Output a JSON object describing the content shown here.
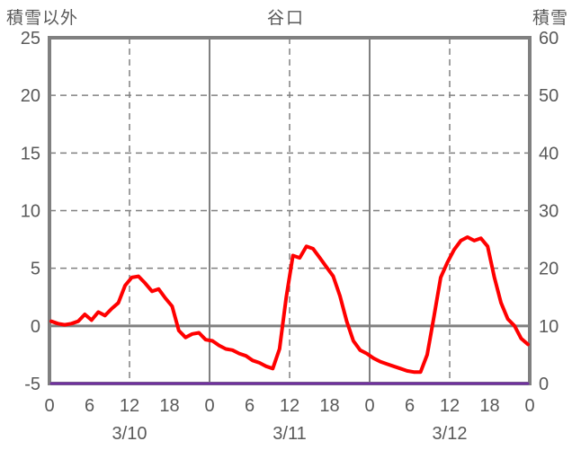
{
  "chart": {
    "title": "谷口",
    "left_axis_title": "積雪以外",
    "right_axis_title": "積雪"
  },
  "chart_data": {
    "type": "line",
    "title": "谷口",
    "x_axis": {
      "unit": "hour",
      "points_per_day": 24,
      "total_points": 72,
      "hour_tick_labels": [
        "0",
        "6",
        "12",
        "18",
        "0",
        "6",
        "12",
        "18",
        "0",
        "6",
        "12",
        "18",
        "0"
      ],
      "day_labels": [
        "3/10",
        "3/11",
        "3/12"
      ]
    },
    "left_axis": {
      "title": "積雪以外",
      "min": -5,
      "max": 25,
      "tick_step": 5,
      "ticks": [
        25,
        20,
        15,
        10,
        5,
        0,
        -5
      ]
    },
    "right_axis": {
      "title": "積雪",
      "min": 0,
      "max": 60,
      "tick_step": 10,
      "ticks": [
        60,
        50,
        40,
        30,
        20,
        10,
        0
      ]
    },
    "grid": {
      "horizontal_dashed_values": [
        20,
        15,
        10,
        5
      ],
      "zero_line_value": 0,
      "vertical_solid_hours": [
        24,
        48
      ],
      "vertical_dashed_hours": [
        12,
        36,
        60
      ],
      "legend": "none"
    },
    "series": [
      {
        "id": "red-line",
        "axis": "left",
        "color": "#FF0000",
        "stroke_width": 4,
        "values": [
          0.4,
          0.2,
          0.1,
          0.2,
          0.4,
          1.0,
          0.5,
          1.2,
          0.9,
          1.5,
          2.0,
          3.5,
          4.2,
          4.3,
          3.7,
          3.0,
          3.2,
          2.4,
          1.7,
          -0.4,
          -1.0,
          -0.7,
          -0.6,
          -1.2,
          -1.3,
          -1.7,
          -2.0,
          -2.1,
          -2.4,
          -2.6,
          -3.0,
          -3.2,
          -3.5,
          -3.7,
          -2.0,
          2.5,
          6.1,
          5.9,
          6.9,
          6.7,
          5.9,
          5.1,
          4.3,
          2.6,
          0.4,
          -1.3,
          -2.1,
          -2.4,
          -2.8,
          -3.1,
          -3.3,
          -3.5,
          -3.7,
          -3.9,
          -4.0,
          -4.0,
          -2.5,
          0.8,
          4.2,
          5.5,
          6.6,
          7.4,
          7.7,
          7.4,
          7.6,
          6.9,
          4.2,
          2.0,
          0.6,
          0.0,
          -1.1,
          -1.6
        ]
      },
      {
        "id": "purple-line",
        "axis": "right",
        "color": "#7030A0",
        "stroke_width": 3,
        "values": [
          0,
          0,
          0,
          0,
          0,
          0,
          0,
          0,
          0,
          0,
          0,
          0,
          0,
          0,
          0,
          0,
          0,
          0,
          0,
          0,
          0,
          0,
          0,
          0,
          0,
          0,
          0,
          0,
          0,
          0,
          0,
          0,
          0,
          0,
          0,
          0,
          0,
          0,
          0,
          0,
          0,
          0,
          0,
          0,
          0,
          0,
          0,
          0,
          0,
          0,
          0,
          0,
          0,
          0,
          0,
          0,
          0,
          0,
          0,
          0,
          0,
          0,
          0,
          0,
          0,
          0,
          0,
          0,
          0,
          0,
          0,
          0
        ]
      }
    ],
    "colors": {
      "text": "#595959",
      "grid": "#808080",
      "border": "#808080",
      "background": "#FFFFFF"
    }
  }
}
